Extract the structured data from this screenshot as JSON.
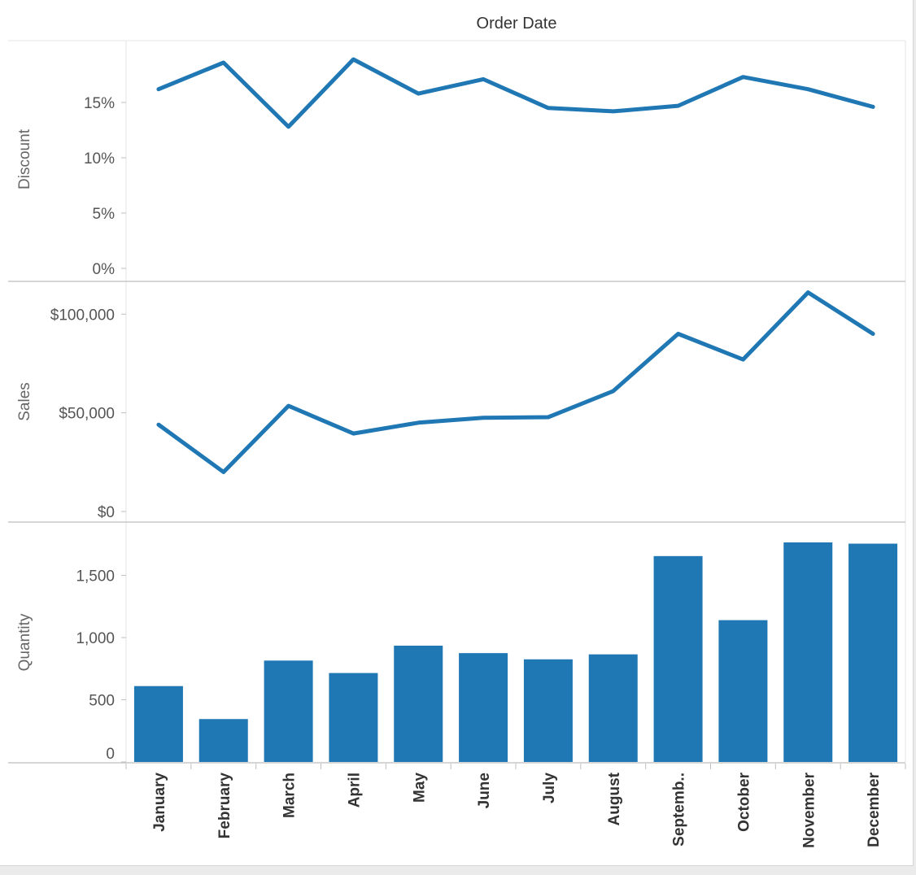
{
  "colors": {
    "series": "#1f77b4",
    "frame_line": "#c8c8c8",
    "tick_mark": "#bfbfbf",
    "background": "#ebebeb"
  },
  "header": {
    "column_title": "Order Date"
  },
  "chart_data": [
    {
      "type": "line",
      "ylabel": "Discount",
      "ylim": [
        0,
        0.2
      ],
      "y_ticks": [
        0,
        0.05,
        0.1,
        0.15
      ],
      "y_tick_labels": [
        "0%",
        "5%",
        "10%",
        "15%"
      ],
      "categories": [
        "January",
        "February",
        "March",
        "April",
        "May",
        "June",
        "July",
        "August",
        "Septemb..",
        "October",
        "November",
        "December"
      ],
      "values": [
        0.162,
        0.186,
        0.128,
        0.189,
        0.158,
        0.171,
        0.145,
        0.142,
        0.147,
        0.173,
        0.162,
        0.146
      ],
      "grid": false
    },
    {
      "type": "line",
      "ylabel": "Sales",
      "ylim": [
        0,
        110000
      ],
      "y_ticks": [
        0,
        50000,
        100000
      ],
      "y_tick_labels": [
        "$0",
        "$50,000",
        "$100,000"
      ],
      "categories": [
        "January",
        "February",
        "March",
        "April",
        "May",
        "June",
        "July",
        "August",
        "Septemb..",
        "October",
        "November",
        "December"
      ],
      "values": [
        44000,
        20000,
        53500,
        39500,
        45000,
        47500,
        47800,
        61000,
        90000,
        77000,
        111000,
        90000
      ],
      "grid": false
    },
    {
      "type": "bar",
      "ylabel": "Quantity",
      "ylim": [
        0,
        1850
      ],
      "y_ticks": [
        0,
        500,
        1000,
        1500
      ],
      "y_tick_labels": [
        "0",
        "500",
        "1,000",
        "1,500"
      ],
      "categories": [
        "January",
        "February",
        "March",
        "April",
        "May",
        "June",
        "July",
        "August",
        "Septemb..",
        "October",
        "November",
        "December"
      ],
      "values": [
        610,
        345,
        815,
        715,
        935,
        875,
        825,
        865,
        1655,
        1140,
        1765,
        1755
      ],
      "grid": false
    }
  ]
}
